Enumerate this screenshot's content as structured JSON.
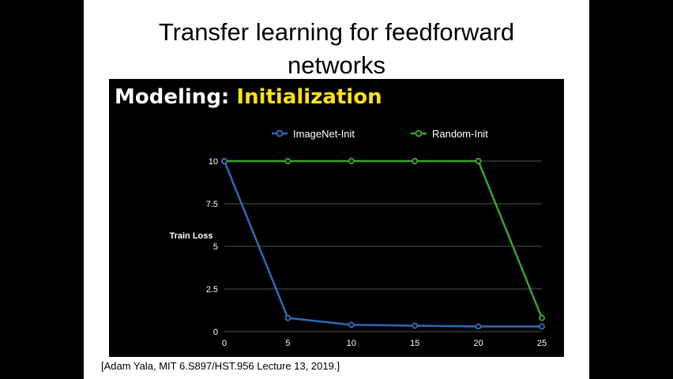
{
  "slide": {
    "title_line1": "Transfer learning for feedforward",
    "title_line2": "networks",
    "heading_prefix": "Modeling:",
    "heading_highlight": "Initialization",
    "citation": "[Adam Yala, MIT 6.S897/HST.956 Lecture 13, 2019.]"
  },
  "colors": {
    "background": "#000000",
    "heading_highlight": "#ffe11a",
    "grid": "#555555"
  },
  "chart_data": {
    "type": "line",
    "title": "",
    "xlabel": "",
    "ylabel": "Train Loss",
    "x": [
      0,
      5,
      10,
      15,
      20,
      25
    ],
    "x_tick_labels": [
      "0",
      "5",
      "10",
      "15",
      "20",
      "25"
    ],
    "y_tick_labels": [
      "0",
      "2.5",
      "5",
      "7.5",
      "10"
    ],
    "y_ticks": [
      0,
      2.5,
      5,
      7.5,
      10
    ],
    "xlim": [
      0,
      25
    ],
    "ylim": [
      0,
      10
    ],
    "grid": true,
    "legend_position": "top-center",
    "series": [
      {
        "name": "ImageNet-Init",
        "color": "#2f6bb8",
        "values": [
          10,
          0.8,
          0.4,
          0.35,
          0.3,
          0.3
        ]
      },
      {
        "name": "Random-Init",
        "color": "#3aa52a",
        "values": [
          10,
          10,
          10,
          10,
          10,
          0.8
        ]
      }
    ]
  }
}
